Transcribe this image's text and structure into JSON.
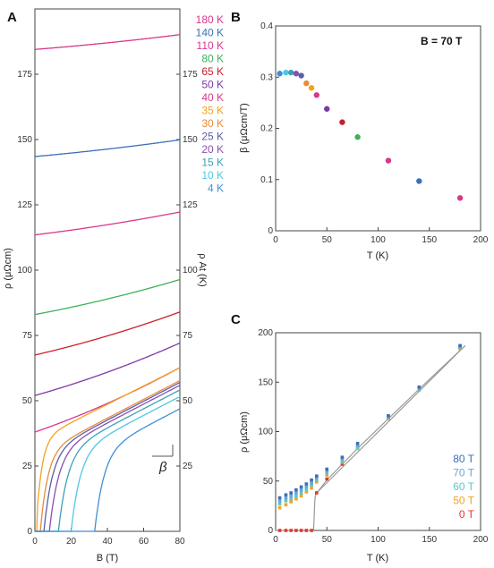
{
  "chart_data": [
    {
      "panel": "A",
      "type": "line",
      "xlabel": "B (T)",
      "ylabel": "ρ (μΩcm)",
      "y2label": "ρ At (K)",
      "xlim": [
        0,
        80
      ],
      "ylim": [
        0,
        200
      ],
      "y2lim": [
        0,
        200
      ],
      "xticks": [
        0,
        20,
        40,
        60,
        80
      ],
      "yticks": [
        0,
        25,
        50,
        75,
        100,
        125,
        150,
        175
      ],
      "y2ticks": [
        25,
        50,
        75,
        100,
        125,
        150,
        175
      ],
      "annotation": "β",
      "series": [
        {
          "name": "180 K",
          "color": "#d6388a",
          "rho0": 184.5,
          "slope": 0.055,
          "onset": 0,
          "width": 0
        },
        {
          "name": "140 K",
          "color": "#3d6fb8",
          "rho0": 143.5,
          "slope": 0.062,
          "onset": 0,
          "width": 0
        },
        {
          "name": "110 K",
          "color": "#d9368f",
          "rho0": 113.5,
          "slope": 0.085,
          "onset": 0,
          "width": 0
        },
        {
          "name": "80 K",
          "color": "#3cb05a",
          "rho0": 83,
          "slope": 0.13,
          "onset": 0,
          "width": 0
        },
        {
          "name": "65 K",
          "color": "#c8202c",
          "rho0": 67.5,
          "slope": 0.16,
          "onset": 0,
          "width": 0
        },
        {
          "name": "50 K",
          "color": "#7a3aa8",
          "rho0": 52,
          "slope": 0.195,
          "onset": 0,
          "width": 0
        },
        {
          "name": "40 K",
          "color": "#d6388a",
          "rho0": 38,
          "slope": 0.24,
          "onset": 0,
          "width": 0
        },
        {
          "name": "35 K",
          "color": "#f2a21e",
          "rho0": 5,
          "slope": 0.35,
          "onset": 1,
          "width": 3
        },
        {
          "name": "30 K",
          "color": "#e98a3a",
          "rho0": 0,
          "slope": 0.36,
          "onset": 3,
          "width": 4
        },
        {
          "name": "25 K",
          "color": "#5a5fa8",
          "rho0": 0,
          "slope": 0.36,
          "onset": 5,
          "width": 4.5
        },
        {
          "name": "20 K",
          "color": "#8a4fb0",
          "rho0": 0,
          "slope": 0.36,
          "onset": 8,
          "width": 5
        },
        {
          "name": "15 K",
          "color": "#3aa2b8",
          "rho0": 0,
          "slope": 0.36,
          "onset": 13,
          "width": 5
        },
        {
          "name": "10 K",
          "color": "#4ec8e0",
          "rho0": 0,
          "slope": 0.36,
          "onset": 20,
          "width": 5
        },
        {
          "name": "4 K",
          "color": "#3f8fd6",
          "rho0": 0,
          "slope": 0.36,
          "onset": 33,
          "width": 5
        }
      ]
    },
    {
      "panel": "B",
      "type": "scatter",
      "title": "B = 70 T",
      "xlabel": "T (K)",
      "ylabel": "β (μΩcm/T)",
      "xlim": [
        0,
        200
      ],
      "ylim": [
        0,
        0.4
      ],
      "xticks": [
        0,
        50,
        100,
        150,
        200
      ],
      "yticks": [
        0,
        0.1,
        0.2,
        0.3,
        0.4
      ],
      "points": [
        {
          "x": 4,
          "y": 0.307,
          "color": "#3f8fd6"
        },
        {
          "x": 10,
          "y": 0.309,
          "color": "#4ec8e0"
        },
        {
          "x": 15,
          "y": 0.309,
          "color": "#3aa2b8"
        },
        {
          "x": 20,
          "y": 0.307,
          "color": "#8a4fb0"
        },
        {
          "x": 25,
          "y": 0.303,
          "color": "#5a5fa8"
        },
        {
          "x": 30,
          "y": 0.288,
          "color": "#e98a3a"
        },
        {
          "x": 35,
          "y": 0.279,
          "color": "#f2a21e"
        },
        {
          "x": 40,
          "y": 0.265,
          "color": "#d6388a"
        },
        {
          "x": 50,
          "y": 0.238,
          "color": "#7a3aa8"
        },
        {
          "x": 65,
          "y": 0.212,
          "color": "#c8202c"
        },
        {
          "x": 80,
          "y": 0.183,
          "color": "#3cb05a"
        },
        {
          "x": 110,
          "y": 0.137,
          "color": "#d9368f"
        },
        {
          "x": 140,
          "y": 0.097,
          "color": "#3d6fb8"
        },
        {
          "x": 180,
          "y": 0.064,
          "color": "#d6388a"
        }
      ]
    },
    {
      "panel": "C",
      "type": "scatter",
      "xlabel": "T (K)",
      "ylabel": "ρ (μΩcm)",
      "xlim": [
        0,
        200
      ],
      "ylim": [
        0,
        200
      ],
      "xticks": [
        0,
        50,
        100,
        150,
        200
      ],
      "yticks": [
        0,
        50,
        100,
        150,
        200
      ],
      "temperatures": [
        4,
        10,
        15,
        20,
        25,
        30,
        35,
        40,
        50,
        65,
        80,
        110,
        140,
        180
      ],
      "series": [
        {
          "name": "80 T",
          "color": "#3d6fb8",
          "values": [
            33,
            36,
            38,
            41,
            44,
            47,
            51,
            55,
            62,
            74,
            88,
            116,
            145,
            187
          ]
        },
        {
          "name": "70 T",
          "color": "#6aa6d8",
          "values": [
            30,
            33,
            35,
            38,
            41,
            44,
            48,
            53,
            60,
            72,
            86,
            115,
            144,
            186
          ]
        },
        {
          "name": "60 T",
          "color": "#5bc7c4",
          "values": [
            27,
            30,
            32,
            35,
            38,
            41,
            46,
            51,
            58,
            70,
            84,
            114,
            143,
            185
          ]
        },
        {
          "name": "50 T",
          "color": "#f2a21e",
          "values": [
            23,
            26,
            29,
            32,
            35,
            39,
            43,
            49,
            56,
            69,
            83,
            113,
            142,
            184
          ]
        },
        {
          "name": "0 T",
          "color": "#e23a2a",
          "values": [
            0,
            0,
            0,
            0,
            0,
            0,
            0,
            38,
            52,
            67,
            83,
            113,
            143,
            184
          ]
        }
      ],
      "fit_line": {
        "from": [
          40,
          38
        ],
        "to": [
          185,
          187
        ]
      },
      "zero_field_curve": [
        [
          0,
          0
        ],
        [
          36,
          0
        ],
        [
          37,
          1
        ],
        [
          37.5,
          10
        ],
        [
          38,
          25
        ],
        [
          38.5,
          34
        ],
        [
          39.5,
          37
        ],
        [
          41,
          39
        ],
        [
          50,
          51
        ],
        [
          65,
          67
        ],
        [
          80,
          83
        ],
        [
          110,
          113
        ],
        [
          140,
          143
        ],
        [
          185,
          187
        ]
      ]
    }
  ]
}
